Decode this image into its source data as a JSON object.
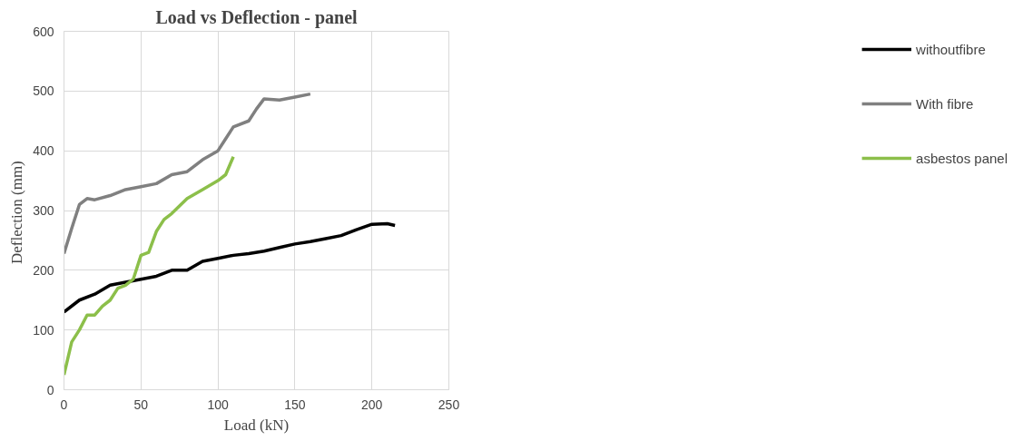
{
  "chart_data": {
    "type": "line",
    "title": "Load vs Deflection - panel",
    "xlabel": "Load (kN)",
    "ylabel": "Deflection  (mm)",
    "xlim": [
      0,
      250
    ],
    "xticks": [
      0,
      50,
      100,
      150,
      200,
      250
    ],
    "ylim": [
      0,
      600
    ],
    "yticks": [
      0,
      100,
      200,
      300,
      400,
      500,
      600
    ],
    "grid": true,
    "legend": "right",
    "marker": "none",
    "line_style": "solid",
    "series": [
      {
        "name": "withoutfibre",
        "color": "#000000",
        "x": [
          0,
          10,
          20,
          30,
          40,
          50,
          60,
          70,
          80,
          90,
          100,
          110,
          120,
          130,
          140,
          150,
          160,
          170,
          180,
          190,
          200,
          210,
          215
        ],
        "values": [
          130,
          150,
          160,
          175,
          180,
          185,
          190,
          200,
          200,
          215,
          220,
          225,
          228,
          232,
          238,
          244,
          248,
          253,
          258,
          268,
          277,
          278,
          275
        ]
      },
      {
        "name": "With fibre",
        "color": "#808080",
        "x": [
          0,
          5,
          10,
          15,
          20,
          30,
          40,
          50,
          60,
          70,
          80,
          90,
          100,
          105,
          110,
          120,
          125,
          130,
          140,
          150,
          160
        ],
        "values": [
          228,
          270,
          310,
          320,
          318,
          325,
          335,
          340,
          345,
          360,
          365,
          385,
          400,
          420,
          440,
          450,
          470,
          487,
          485,
          490,
          495
        ]
      },
      {
        "name": "asbestos panel",
        "color": "#8cbf4a",
        "x": [
          0,
          5,
          10,
          15,
          20,
          25,
          30,
          35,
          40,
          45,
          50,
          55,
          60,
          65,
          70,
          80,
          90,
          100,
          105,
          110
        ],
        "values": [
          25,
          80,
          100,
          125,
          125,
          140,
          150,
          170,
          175,
          185,
          225,
          230,
          265,
          285,
          295,
          320,
          335,
          350,
          360,
          390
        ]
      }
    ]
  }
}
